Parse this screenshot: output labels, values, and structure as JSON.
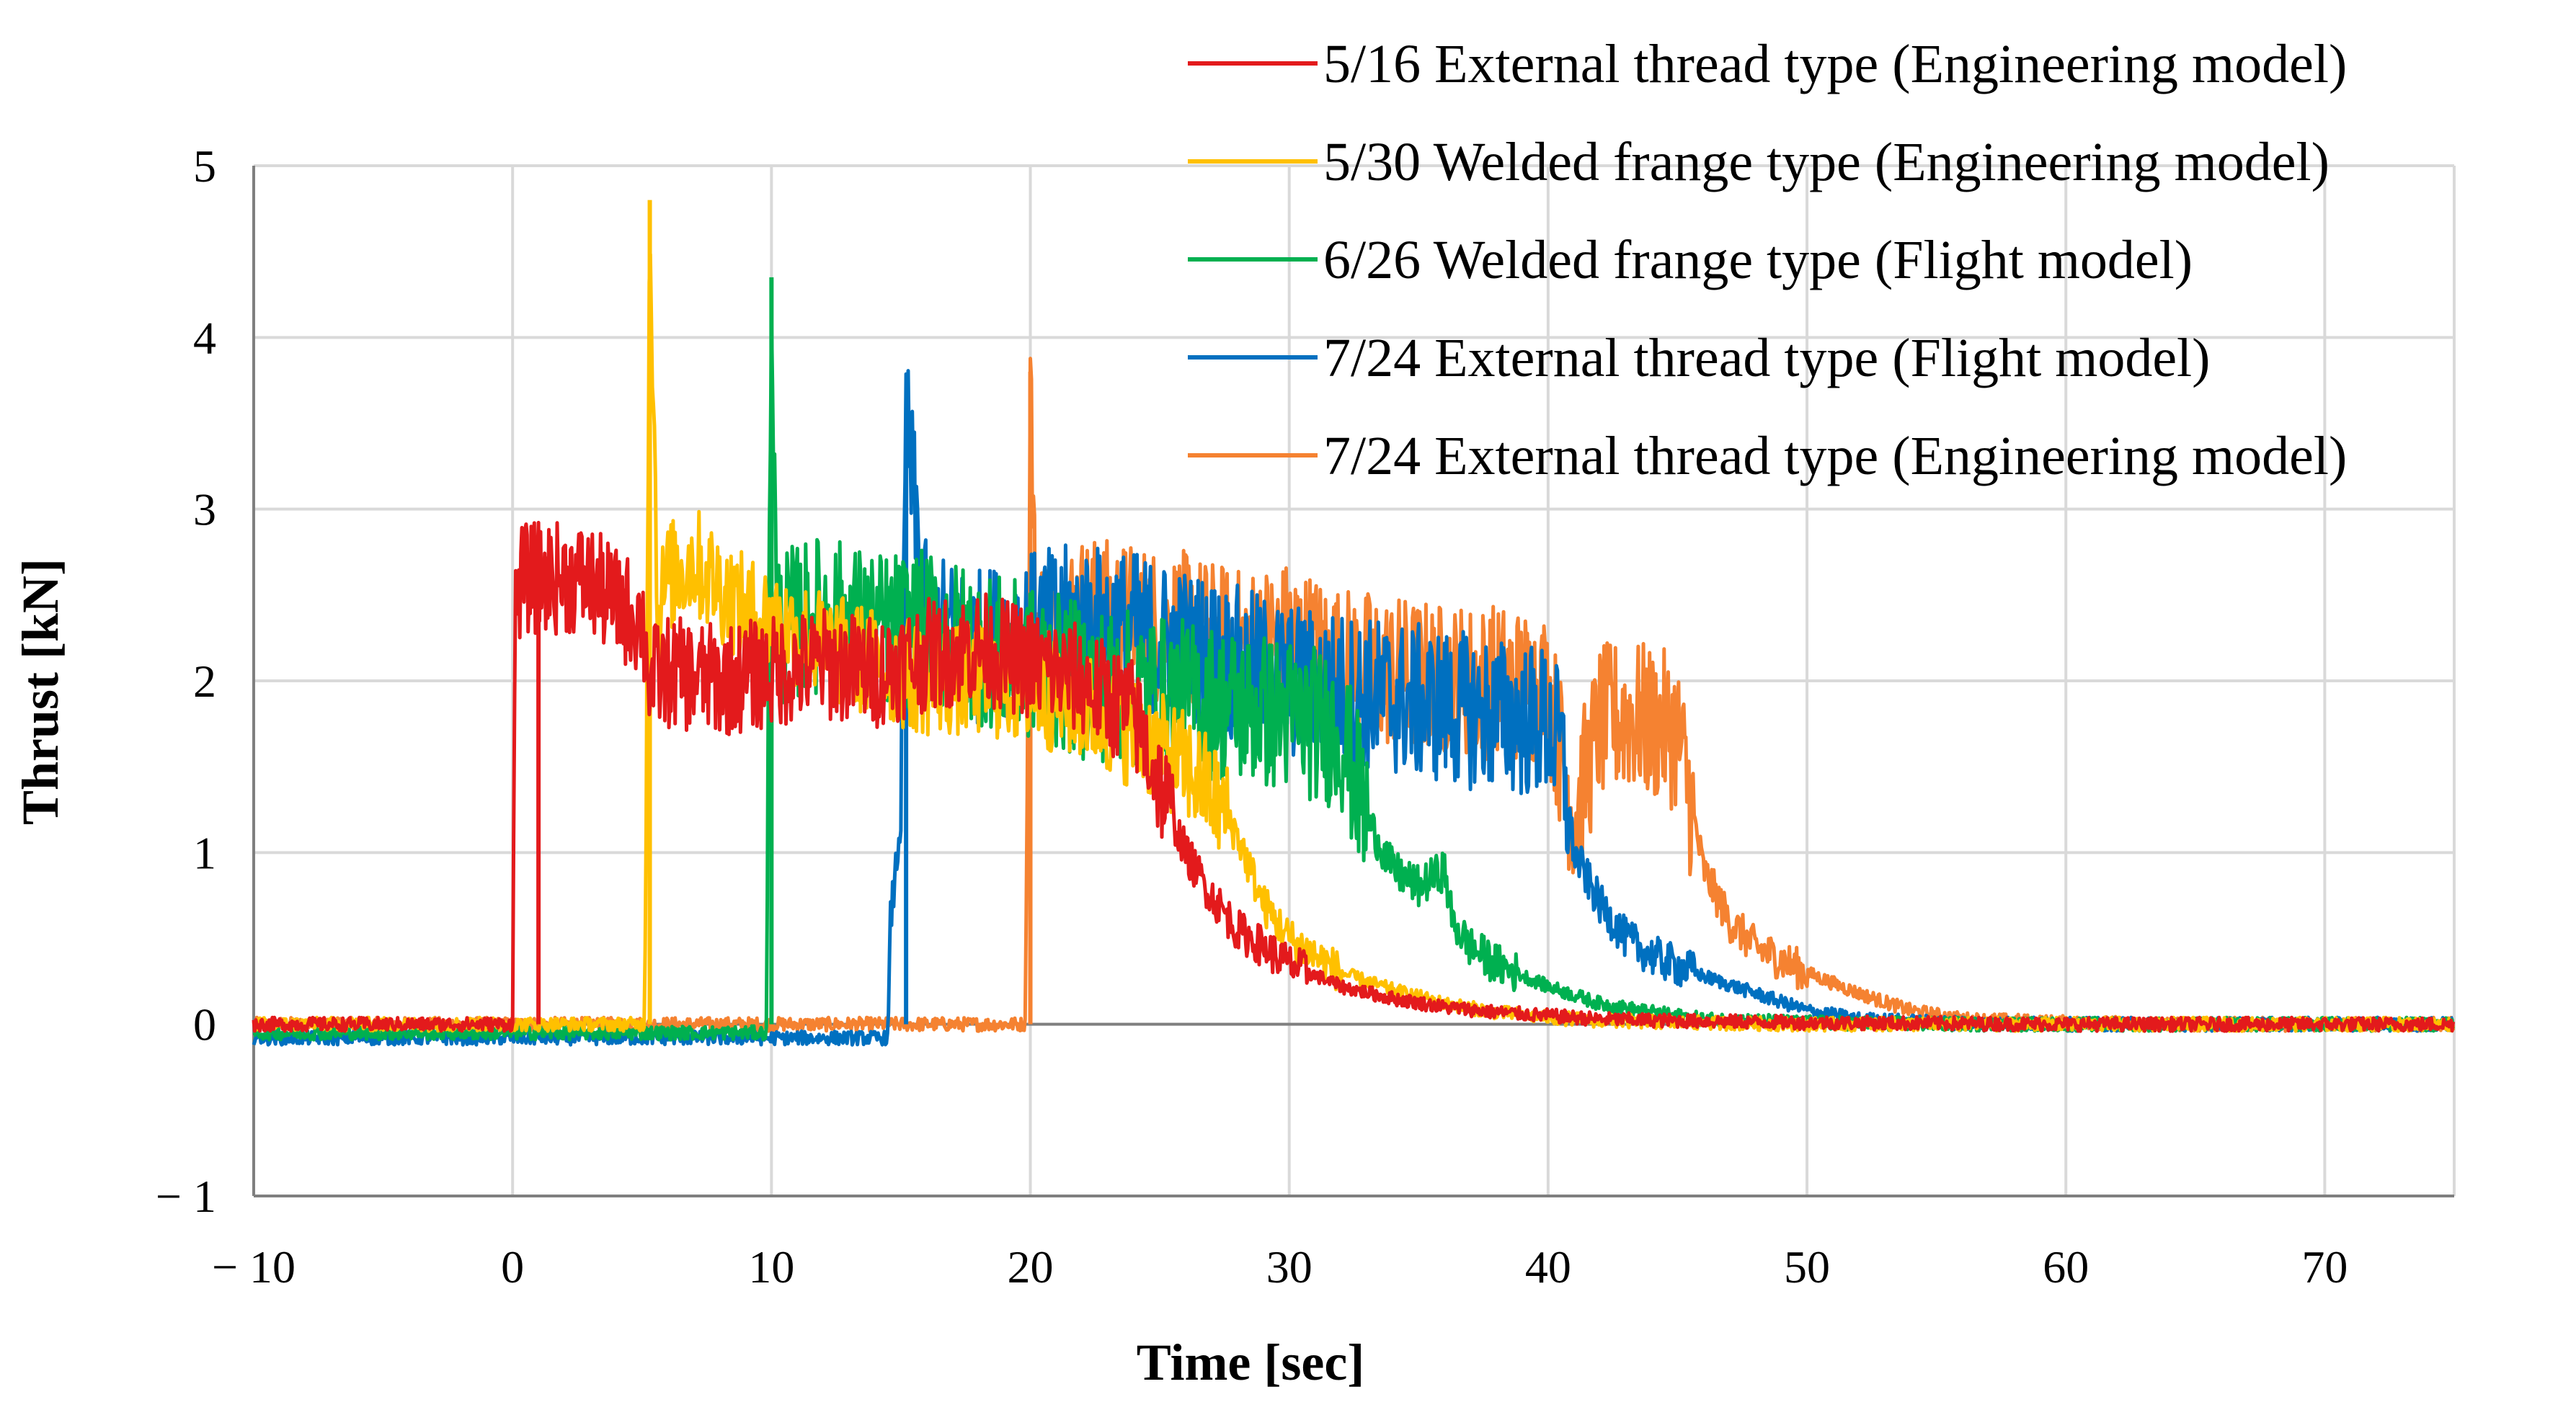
{
  "chart_data": {
    "type": "line",
    "title": "",
    "xlabel": "Time [sec]",
    "ylabel": "Thrust [kN]",
    "xlim": [
      -10,
      75
    ],
    "ylim": [
      -1,
      5
    ],
    "x_ticks": [
      -10,
      0,
      10,
      20,
      30,
      40,
      50,
      60,
      70
    ],
    "y_ticks": [
      -1,
      0,
      1,
      2,
      3,
      4,
      5
    ],
    "x_tick_labels": [
      "− 10",
      "0",
      "10",
      "20",
      "30",
      "40",
      "50",
      "60",
      "70"
    ],
    "y_tick_labels": [
      "− 1",
      "0",
      "1",
      "2",
      "3",
      "4",
      "5"
    ],
    "grid": true,
    "legend_position": "top-right",
    "series": [
      {
        "name": "5/16 External thread type (Engineering model)",
        "color": "#e31a1c",
        "x": [
          -10,
          0,
          0.1,
          0.3,
          1,
          2,
          3,
          4,
          5,
          5.3,
          6,
          8,
          10,
          12,
          14,
          16,
          18,
          20,
          22,
          24,
          25,
          26,
          27,
          28,
          30,
          32,
          34,
          36,
          38,
          40,
          42,
          45,
          50,
          60,
          75
        ],
        "y": [
          0,
          0,
          2.45,
          2.58,
          2.6,
          2.6,
          2.58,
          2.45,
          2.35,
          2.0,
          2.05,
          2.0,
          2.05,
          2.1,
          2.05,
          2.15,
          2.2,
          2.1,
          2.0,
          1.8,
          1.4,
          1.0,
          0.75,
          0.55,
          0.35,
          0.22,
          0.15,
          0.1,
          0.07,
          0.05,
          0.03,
          0.02,
          0.01,
          0,
          0
        ]
      },
      {
        "name": "5/30 Welded frange type (Engineering model)",
        "color": "#ffc000",
        "x": [
          -10,
          5.1,
          5.3,
          5.6,
          6,
          7,
          8,
          9,
          10,
          12,
          14,
          16,
          18,
          20,
          22,
          24,
          26,
          27,
          28,
          29,
          30,
          32,
          34,
          36,
          38,
          40,
          42,
          45,
          50,
          60,
          75
        ],
        "y": [
          0,
          0,
          4.8,
          2.4,
          2.6,
          2.7,
          2.55,
          2.4,
          2.35,
          2.2,
          2.1,
          2.0,
          2.0,
          1.95,
          1.85,
          1.7,
          1.5,
          1.35,
          1.1,
          0.7,
          0.5,
          0.3,
          0.2,
          0.12,
          0.07,
          0.04,
          0.02,
          0.01,
          0,
          0,
          0
        ]
      },
      {
        "name": "6/26 Welded frange type (Flight model)",
        "color": "#00b050",
        "x": [
          -10,
          9.8,
          10.0,
          10.2,
          12,
          14,
          16,
          18,
          20,
          22,
          24,
          26,
          28,
          30,
          32,
          33,
          34,
          35,
          36,
          36.3,
          37,
          38,
          40,
          42,
          44,
          46,
          50,
          55,
          60,
          75
        ],
        "y": [
          -0.05,
          -0.05,
          4.35,
          2.3,
          2.4,
          2.3,
          2.3,
          2.2,
          2.1,
          2.0,
          1.95,
          1.9,
          1.85,
          1.8,
          1.7,
          1.2,
          0.9,
          0.8,
          0.9,
          0.6,
          0.45,
          0.35,
          0.22,
          0.12,
          0.07,
          0.03,
          0.01,
          0,
          0,
          0
        ]
      },
      {
        "name": "7/24 External thread type (Flight model)",
        "color": "#0070c0",
        "x": [
          -10,
          14.5,
          14.6,
          15.0,
          15.2,
          16,
          18,
          20,
          22,
          24,
          26,
          28,
          30,
          32,
          34,
          36,
          38,
          40,
          40.5,
          41,
          42,
          43,
          44,
          46,
          48,
          50,
          52,
          55,
          60,
          75
        ],
        "y": [
          -0.08,
          -0.08,
          0.6,
          1.2,
          3.5,
          2.3,
          2.2,
          2.3,
          2.35,
          2.3,
          2.2,
          2.1,
          2.0,
          1.95,
          1.9,
          1.85,
          1.8,
          1.75,
          1.6,
          1.0,
          0.7,
          0.5,
          0.4,
          0.28,
          0.18,
          0.08,
          0.03,
          0.01,
          0,
          0
        ]
      },
      {
        "name": "7/24 External thread type (Engineering model)",
        "color": "#f58231",
        "x": [
          -10,
          19.8,
          20.0,
          20.2,
          22,
          24,
          26,
          28,
          30,
          32,
          34,
          36,
          38,
          40,
          41,
          42,
          43,
          44,
          45,
          46,
          47,
          48,
          50,
          52,
          54,
          56,
          60,
          65,
          75
        ],
        "y": [
          0,
          0,
          3.8,
          2.3,
          2.4,
          2.35,
          2.3,
          2.2,
          2.25,
          2.1,
          2.05,
          2.0,
          2.0,
          1.95,
          1.2,
          1.75,
          1.8,
          1.75,
          1.7,
          0.9,
          0.6,
          0.45,
          0.3,
          0.18,
          0.08,
          0.03,
          0.01,
          0,
          0
        ]
      }
    ]
  }
}
